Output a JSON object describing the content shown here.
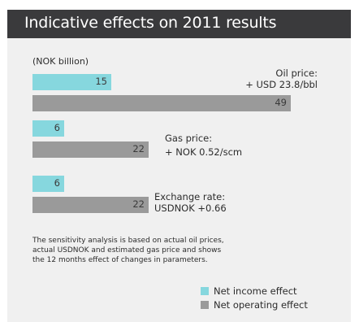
{
  "colors": {
    "header_bg": "#3a3a3c",
    "panel_bg": "#f0f0f0",
    "net_income": "#86d7de",
    "net_operating": "#9a9a9a"
  },
  "header": {
    "title": "Indicative effects on 2011 results"
  },
  "chart_data": {
    "type": "bar",
    "orientation": "horizontal",
    "title": "Indicative effects on 2011 results",
    "unit": "(NOK billion)",
    "xlim": [
      0,
      49
    ],
    "grid": false,
    "legend_position": "bottom-right",
    "groups": [
      {
        "label_line1": "Oil price:",
        "label_line2": "+ USD 23.8/bbl"
      },
      {
        "label_line1": "Gas price:",
        "label_line2": "+ NOK 0.52/scm"
      },
      {
        "label_line1": "Exchange rate:",
        "label_line2": "USDNOK +0.66"
      }
    ],
    "series": [
      {
        "name": "Net income effect",
        "values": [
          15,
          6,
          6
        ]
      },
      {
        "name": "Net operating effect",
        "values": [
          49,
          22,
          22
        ]
      }
    ]
  },
  "note": "The sensitivity analysis is based on actual oil prices, actual USDNOK and estimated gas price and shows the 12 months effect of changes in parameters."
}
